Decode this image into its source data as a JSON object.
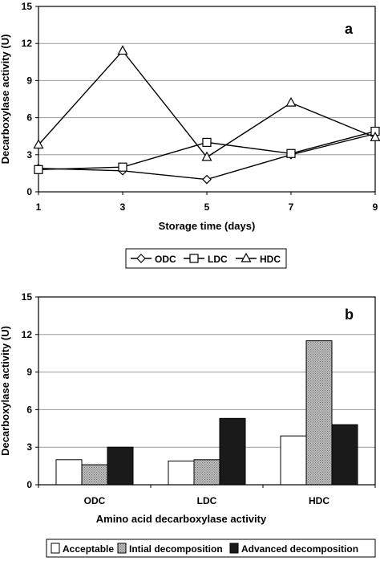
{
  "chart_data": [
    {
      "type": "line",
      "panel_label": "a",
      "xlabel": "Storage time (days)",
      "ylabel": "Decarboxylase activity (U)",
      "x": [
        1,
        3,
        5,
        7,
        9
      ],
      "xticks": [
        "1",
        "3",
        "5",
        "7",
        "9"
      ],
      "ylim": [
        0,
        15
      ],
      "yticks": [
        "0",
        "3",
        "6",
        "9",
        "12",
        "15"
      ],
      "grid": "horizontal",
      "legend_position": "bottom",
      "series": [
        {
          "name": "ODC",
          "marker": "diamond",
          "values": [
            1.9,
            1.7,
            1.0,
            3.0,
            4.7
          ]
        },
        {
          "name": "LDC",
          "marker": "square",
          "values": [
            1.8,
            2.0,
            4.0,
            3.1,
            4.9
          ]
        },
        {
          "name": "HDC",
          "marker": "triangle",
          "values": [
            3.8,
            11.4,
            2.8,
            7.2,
            4.4
          ]
        }
      ]
    },
    {
      "type": "bar",
      "panel_label": "b",
      "xlabel": "Amino acid decarboxylase activity",
      "ylabel": "Decarboxylase activity (U)",
      "categories": [
        "ODC",
        "LDC",
        "HDC"
      ],
      "ylim": [
        0,
        15
      ],
      "yticks": [
        "0",
        "3",
        "6",
        "9",
        "12",
        "15"
      ],
      "grid": "horizontal",
      "legend_position": "bottom",
      "series": [
        {
          "name": "Acceptable",
          "fill": "#ffffff",
          "values": [
            2.0,
            1.9,
            3.9
          ]
        },
        {
          "name": "Intial decomposition",
          "fill": "#a8a8a8",
          "values": [
            1.6,
            2.0,
            11.5
          ]
        },
        {
          "name": "Advanced decomposition",
          "fill": "#1a1a1a",
          "values": [
            3.0,
            5.3,
            4.8
          ]
        }
      ]
    }
  ]
}
